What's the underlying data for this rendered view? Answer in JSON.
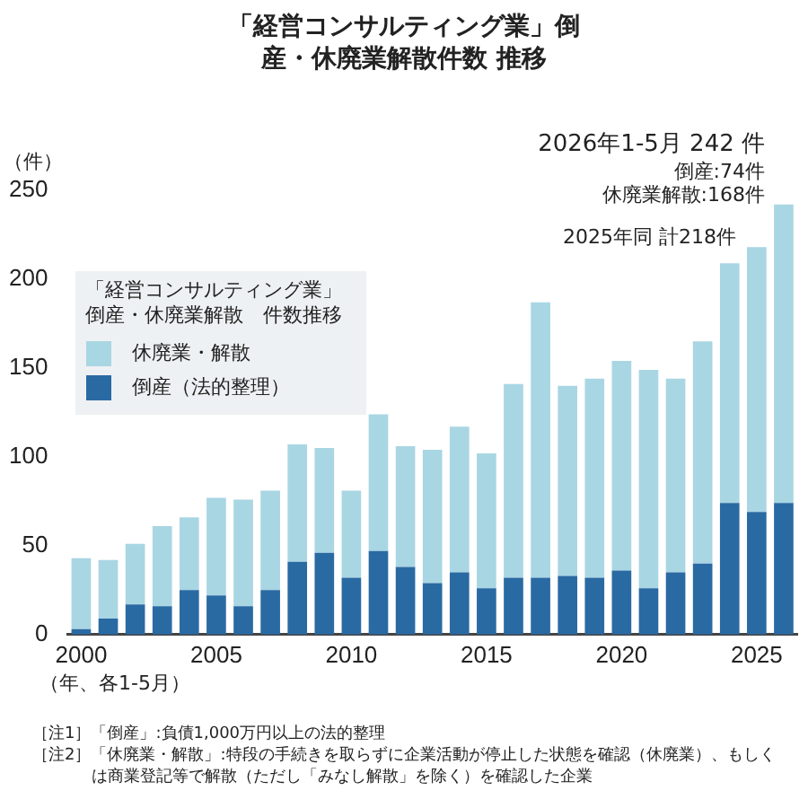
{
  "chart_data": {
    "type": "bar",
    "title": "「経営コンサルティング業」倒産・休廃業解散件数 推移",
    "ylabel": "（件）",
    "xlabel": "（年、各1-5月）",
    "legend_title": "「経営コンサルティング業」倒産・休廃業解散　件数推移",
    "categories": [
      "2000",
      null,
      null,
      null,
      null,
      "2005",
      null,
      null,
      null,
      null,
      "2010",
      null,
      null,
      null,
      null,
      "2015",
      null,
      null,
      null,
      null,
      "2020",
      null,
      null,
      null,
      null,
      "2025",
      null
    ],
    "stacked": true,
    "legend": "top left",
    "grid": false,
    "ylim": [
      0,
      250
    ],
    "yticks": [
      0,
      50,
      100,
      150,
      200,
      250
    ],
    "series": [
      {
        "name": "倒産（法的整理）",
        "color": "#2a6aa3",
        "values": [
          3,
          9,
          17,
          16,
          25,
          22,
          16,
          25,
          41,
          46,
          32,
          47,
          38,
          29,
          35,
          26,
          32,
          32,
          33,
          32,
          36,
          26,
          35,
          40,
          74,
          69,
          74
        ]
      },
      {
        "name": "休廃業・解散",
        "color": "#a9d6e3",
        "values": [
          40,
          33,
          34,
          45,
          41,
          55,
          60,
          56,
          66,
          59,
          49,
          77,
          68,
          75,
          82,
          76,
          109,
          155,
          107,
          112,
          118,
          123,
          109,
          125,
          135,
          149,
          168
        ]
      }
    ],
    "annotations": [
      "2026年1-5月 242 件",
      "倒産:74件",
      "休廃業解散:168件",
      {
        "text": "2025年同 計218件",
        "x": "2025",
        "y": 218
      },
      "［注1］「倒産」:負債1,000万円以上の法的整理",
      "［注2］「休廃業・解散」:特段の手続きを取らずに企業活動が停止した状態を確認（休廃業）、もしくは商業登記等で解散（ただし「みなし解散」を除く）を確認した企業"
    ]
  }
}
